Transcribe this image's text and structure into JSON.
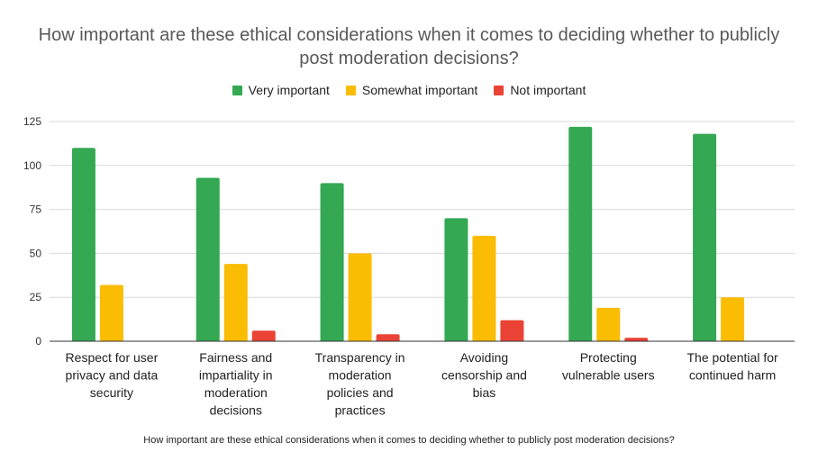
{
  "chart_data": {
    "type": "bar",
    "title": "How important are these ethical considerations when it comes to deciding whether to publicly post moderation decisions?",
    "xlabel": "How important are these ethical considerations when it comes to deciding whether to publicly post moderation decisions?",
    "ylabel": "",
    "ylim": [
      0,
      125
    ],
    "yticks": [
      0,
      25,
      50,
      75,
      100,
      125
    ],
    "grid": true,
    "legend_position": "top",
    "categories": [
      [
        "Respect for user",
        "privacy and data",
        "security"
      ],
      [
        "Fairness and",
        "impartiality in",
        "moderation",
        "decisions"
      ],
      [
        "Transparency in",
        "moderation",
        "policies and",
        "practices"
      ],
      [
        "Avoiding",
        "censorship and",
        "bias"
      ],
      [
        "Protecting",
        "vulnerable users"
      ],
      [
        "The potential for",
        "continued harm"
      ]
    ],
    "series": [
      {
        "name": "Very important",
        "color": "#34a853",
        "values": [
          110,
          93,
          90,
          70,
          122,
          118
        ]
      },
      {
        "name": "Somewhat important",
        "color": "#fbbc04",
        "values": [
          32,
          44,
          50,
          60,
          19,
          25
        ]
      },
      {
        "name": "Not important",
        "color": "#ea4335",
        "values": [
          0,
          6,
          4,
          12,
          2,
          0
        ]
      }
    ]
  }
}
